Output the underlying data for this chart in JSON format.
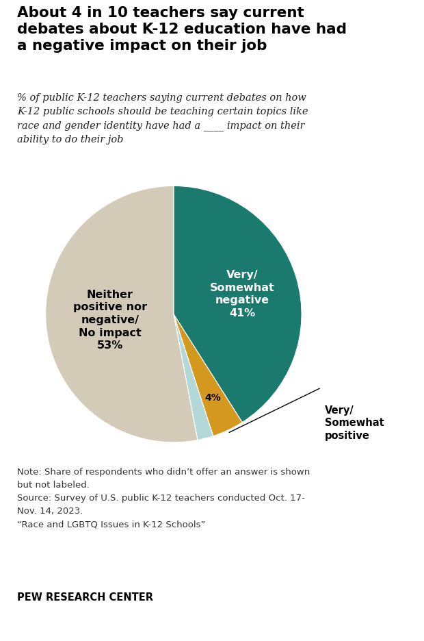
{
  "title": "About 4 in 10 teachers say current\ndebates about K-12 education have had\na negative impact on their job",
  "subtitle": "% of public K-12 teachers saying current debates on how\nK-12 public schools should be teaching certain topics like\nrace and gender identity have had a ____ impact on their\nability to do their job",
  "slices": [
    41,
    4,
    2,
    53
  ],
  "colors": [
    "#1a7a6e",
    "#d4981f",
    "#b2d8d8",
    "#d3cbb8"
  ],
  "note_line1": "Note: Share of respondents who didn’t offer an answer is shown",
  "note_line2": "but not labeled.",
  "note_line3": "Source: Survey of U.S. public K-12 teachers conducted Oct. 17-",
  "note_line4": "Nov. 14, 2023.",
  "note_line5": "“Race and LGBTQ Issues in K-12 Schools”",
  "footer": "PEW RESEARCH CENTER",
  "negative_label": "Very/\nSomewhat\nnegative",
  "negative_pct": "41%",
  "positive_label": "Very/\nSomewhat\npositive",
  "positive_pct": "4%",
  "neither_label": "Neither\npositive nor\nnegative/\nNo impact",
  "neither_pct": "53%"
}
